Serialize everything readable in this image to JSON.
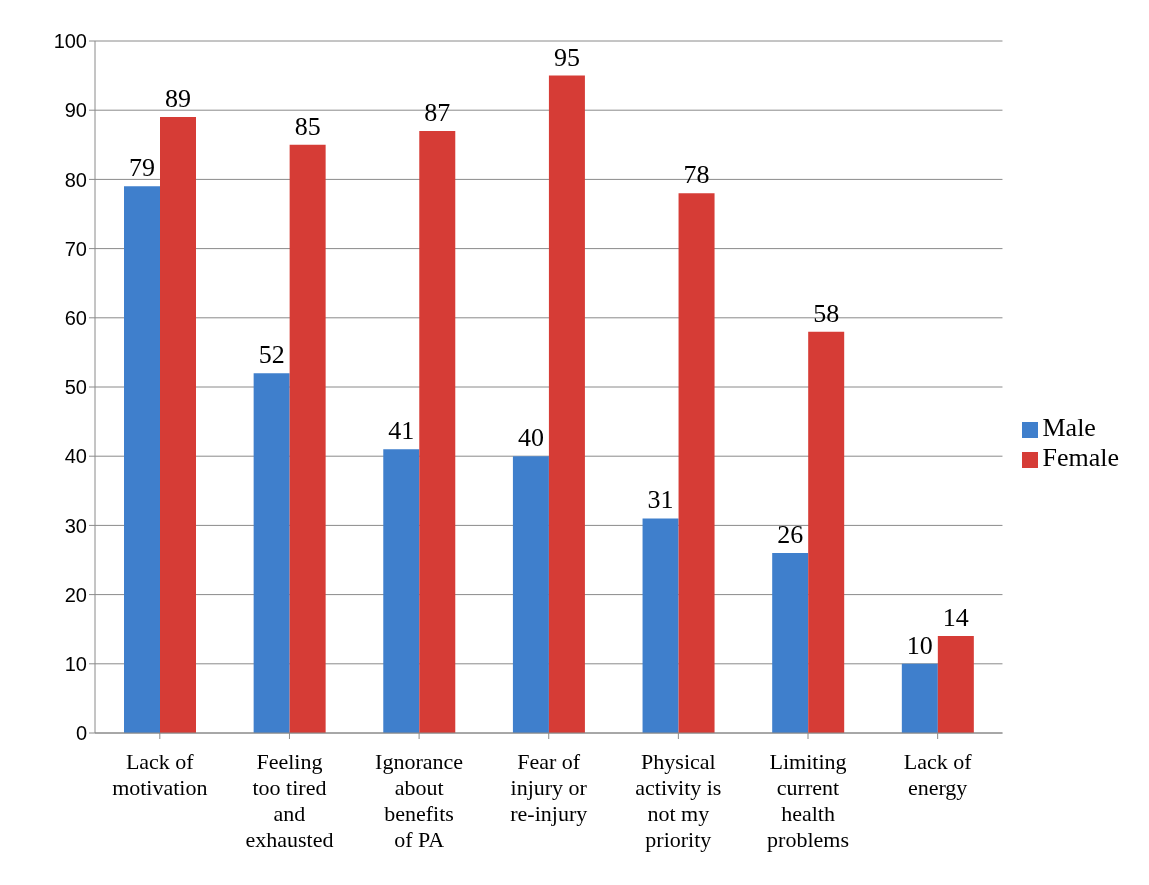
{
  "chart_data": {
    "type": "bar",
    "categories": [
      "Lack of motivation",
      "Feeling too tired and exhausted",
      "Ignorance about benefits of PA",
      "Fear of injury or re-injury",
      "Physical activity is not my priority",
      "Limiting current health problems",
      "Lack of energy"
    ],
    "series": [
      {
        "name": "Male",
        "color": "#3f7fcc",
        "values": [
          79,
          52,
          41,
          40,
          31,
          26,
          10
        ]
      },
      {
        "name": "Female",
        "color": "#d63c36",
        "values": [
          89,
          85,
          87,
          95,
          78,
          58,
          14
        ]
      }
    ],
    "ylim": [
      0,
      100
    ],
    "yticks": [
      0,
      10,
      20,
      30,
      40,
      50,
      60,
      70,
      80,
      90,
      100
    ],
    "grid": "y",
    "legend": "right",
    "data_labels": true
  }
}
